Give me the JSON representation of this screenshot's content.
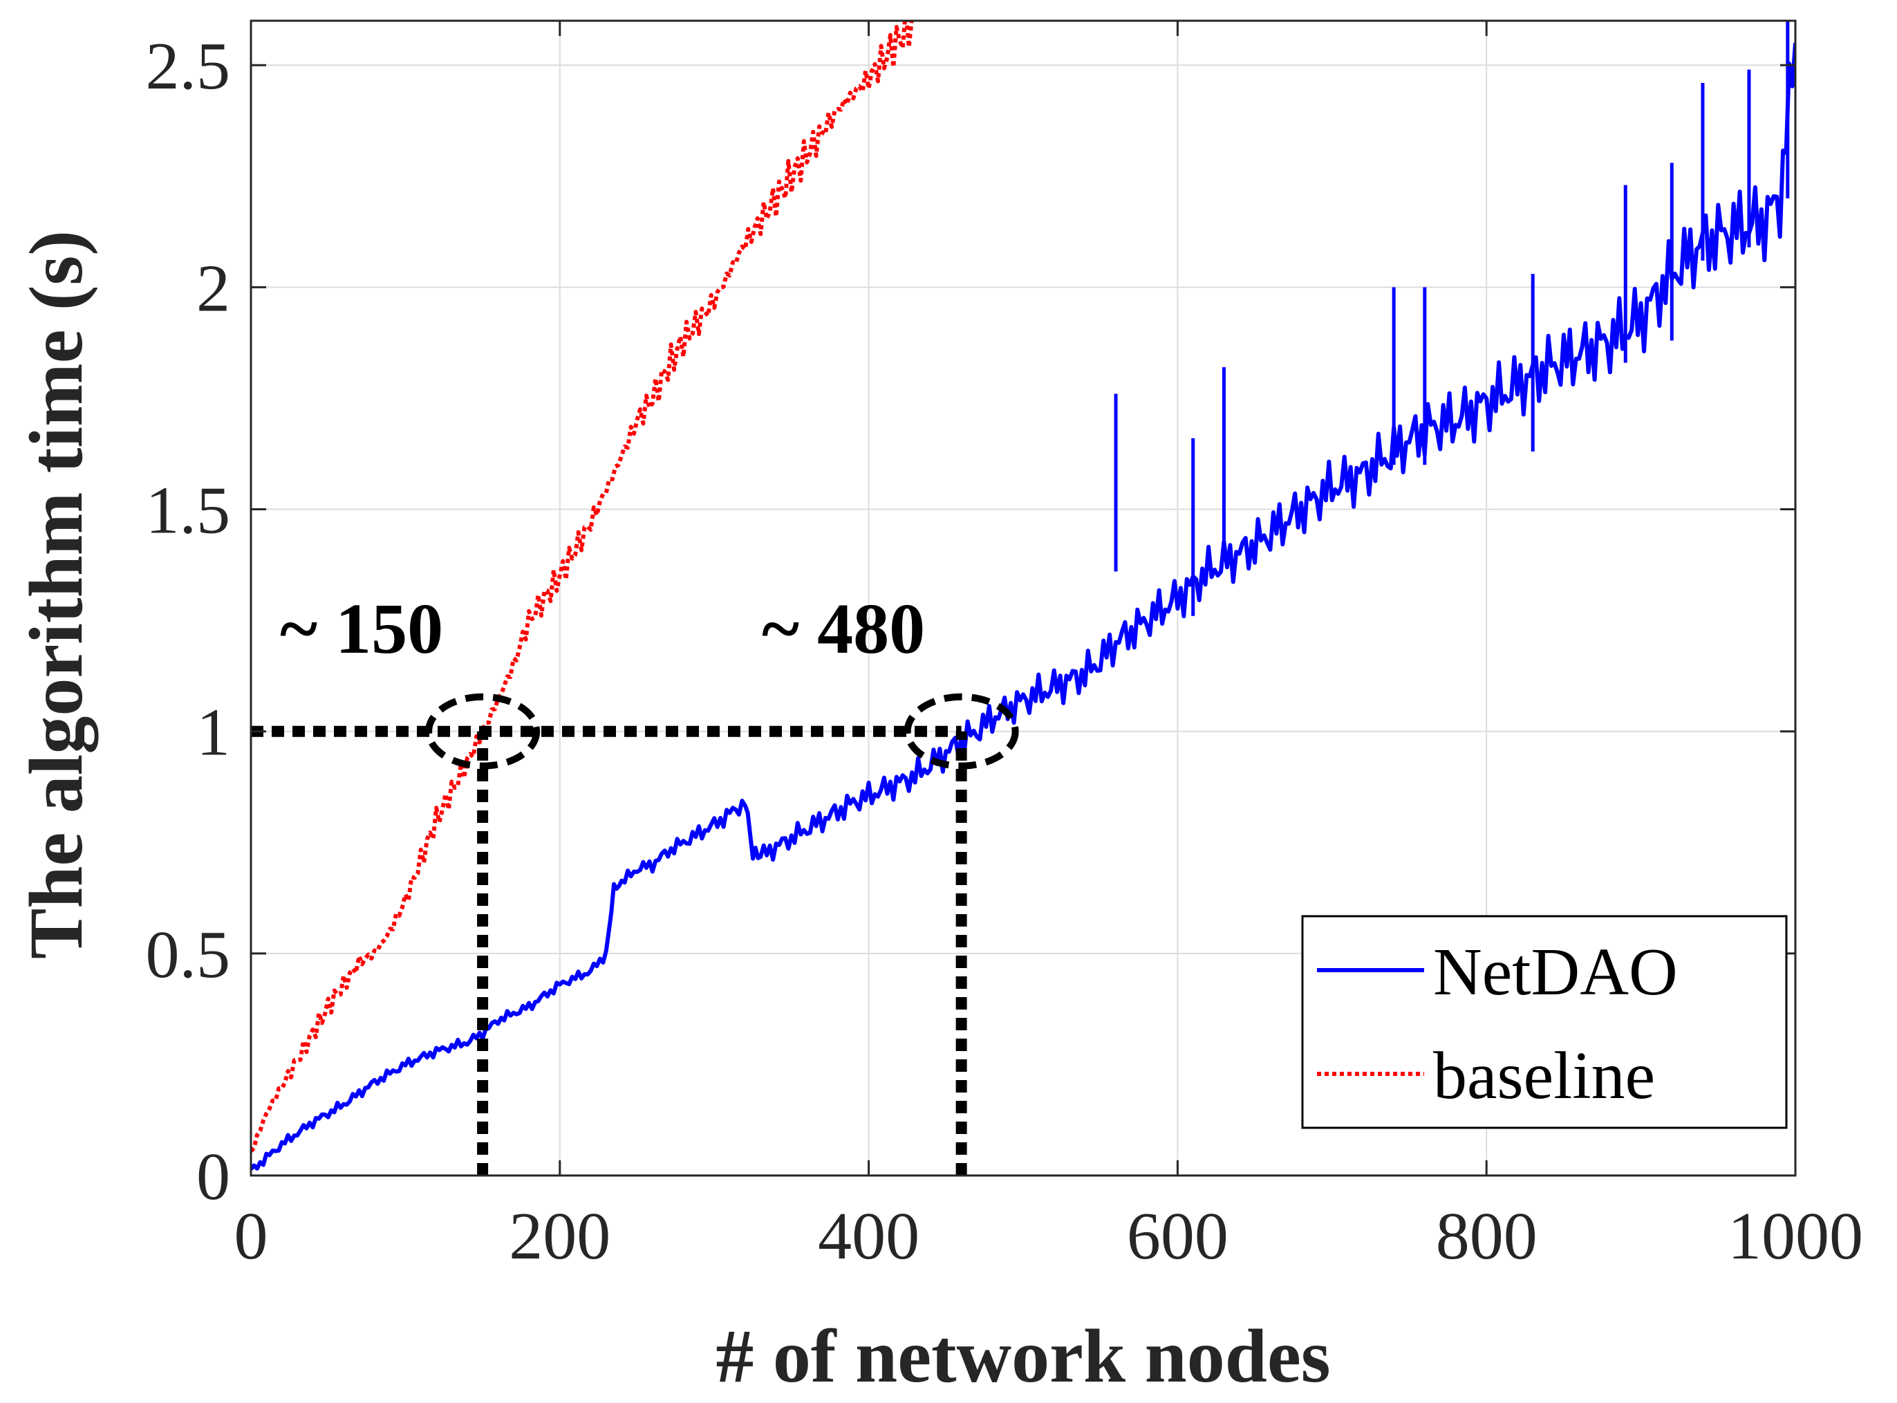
{
  "chart_data": {
    "type": "line",
    "title": "",
    "xlabel": "# of network nodes",
    "ylabel": "The algorithm time (s)",
    "xlim": [
      0,
      1000
    ],
    "ylim": [
      0,
      2.6
    ],
    "xticks": [
      0,
      200,
      400,
      600,
      800,
      1000
    ],
    "xtick_labels": [
      "0",
      "200",
      "400",
      "600",
      "800",
      "1000"
    ],
    "yticks": [
      0,
      0.5,
      1,
      1.5,
      2,
      2.5
    ],
    "ytick_labels": [
      "0",
      "0.5",
      "1",
      "1.5",
      "2",
      "2.5"
    ],
    "grid": true,
    "legend_position": "bottom-right",
    "series": [
      {
        "name": "NetDAO",
        "style": "solid",
        "color": "#0000ff",
        "x": [
          0,
          20,
          40,
          60,
          80,
          100,
          120,
          140,
          150,
          160,
          180,
          200,
          220,
          230,
          235,
          240,
          250,
          260,
          270,
          280,
          300,
          320,
          325,
          330,
          350,
          370,
          390,
          410,
          430,
          450,
          460,
          470,
          480,
          500,
          520,
          540,
          550,
          560,
          580,
          600,
          620,
          650,
          680,
          700,
          720,
          740,
          760,
          780,
          800,
          820,
          840,
          860,
          880,
          900,
          920,
          940,
          960,
          980,
          990,
          1000
        ],
        "y": [
          0.01,
          0.07,
          0.12,
          0.16,
          0.21,
          0.25,
          0.28,
          0.3,
          0.32,
          0.35,
          0.38,
          0.43,
          0.46,
          0.5,
          0.65,
          0.66,
          0.69,
          0.7,
          0.73,
          0.75,
          0.79,
          0.84,
          0.72,
          0.72,
          0.76,
          0.8,
          0.84,
          0.87,
          0.9,
          0.95,
          0.98,
          1.0,
          1.03,
          1.07,
          1.1,
          1.13,
          1.16,
          1.2,
          1.25,
          1.3,
          1.36,
          1.42,
          1.5,
          1.55,
          1.58,
          1.63,
          1.68,
          1.7,
          1.74,
          1.78,
          1.82,
          1.85,
          1.88,
          1.93,
          2.03,
          2.1,
          2.13,
          2.15,
          2.2,
          2.55
        ]
      },
      {
        "name": "baseline",
        "style": "dotted",
        "color": "#ff0000",
        "x": [
          0,
          10,
          20,
          30,
          40,
          50,
          60,
          70,
          80,
          90,
          100,
          120,
          140,
          150,
          160,
          170,
          180,
          200,
          220,
          240,
          250,
          260,
          270,
          280,
          300,
          320,
          340,
          360,
          380,
          400,
          420,
          430
        ],
        "y": [
          0.05,
          0.14,
          0.2,
          0.26,
          0.32,
          0.38,
          0.43,
          0.48,
          0.5,
          0.55,
          0.62,
          0.8,
          0.93,
          1.0,
          1.07,
          1.15,
          1.25,
          1.35,
          1.47,
          1.62,
          1.7,
          1.75,
          1.82,
          1.88,
          1.97,
          2.1,
          2.2,
          2.3,
          2.4,
          2.47,
          2.56,
          2.6
        ]
      }
    ],
    "reference_lines": [
      {
        "type": "horizontal",
        "y": 1,
        "x_from": 0,
        "x_to": 460
      },
      {
        "type": "vertical",
        "x": 150,
        "y_from": 0,
        "y_to": 1
      },
      {
        "type": "vertical",
        "x": 460,
        "y_from": 0,
        "y_to": 1
      }
    ],
    "annotations": [
      {
        "text": "~ 150",
        "x": 90,
        "y": 1.22
      },
      {
        "text": "~ 480",
        "x": 400,
        "y": 1.22
      }
    ],
    "markers": [
      {
        "shape": "dashed-ellipse",
        "x": 150,
        "y": 1.0
      },
      {
        "shape": "dashed-ellipse",
        "x": 460,
        "y": 1.0
      }
    ]
  }
}
